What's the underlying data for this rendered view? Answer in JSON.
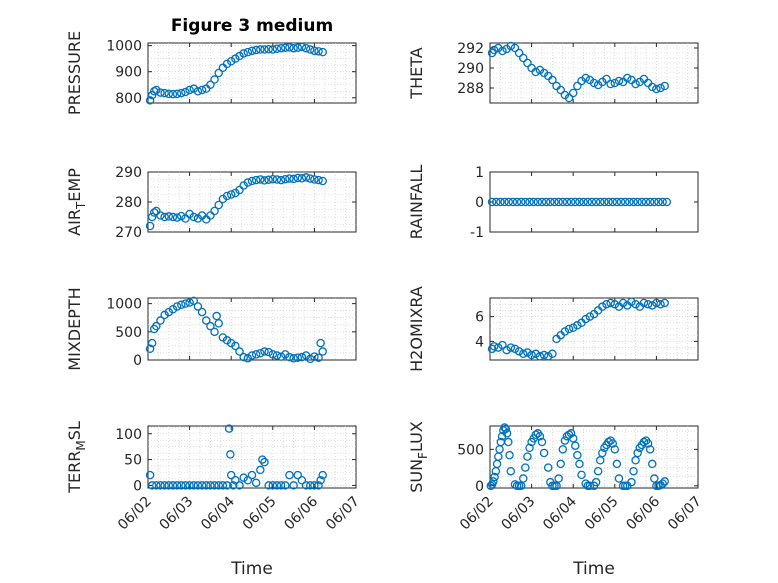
{
  "title": "Figure 3 medium",
  "marker_color": "#0072bd",
  "x_ticks": [
    "06/02",
    "06/03",
    "06/04",
    "06/05",
    "06/06",
    "06/07"
  ],
  "x_label": "Time",
  "chart_data": [
    {
      "type": "scatter",
      "panel": "left-1",
      "ylabel": "PRESSURE",
      "ylim": [
        780,
        1010
      ],
      "yticks": [
        "800",
        "900",
        "1000"
      ],
      "grid": true,
      "x_range_days": [
        0,
        5
      ],
      "x": [
        0.05,
        0.1,
        0.15,
        0.2,
        0.3,
        0.4,
        0.5,
        0.6,
        0.7,
        0.8,
        0.9,
        1.0,
        1.1,
        1.2,
        1.3,
        1.4,
        1.5,
        1.6,
        1.7,
        1.8,
        1.9,
        2.0,
        2.1,
        2.2,
        2.3,
        2.4,
        2.5,
        2.6,
        2.7,
        2.8,
        2.9,
        3.0,
        3.1,
        3.2,
        3.3,
        3.4,
        3.5,
        3.6,
        3.7,
        3.8,
        3.9,
        4.0,
        4.1,
        4.2
      ],
      "y": [
        790,
        810,
        825,
        830,
        820,
        818,
        815,
        814,
        815,
        818,
        822,
        830,
        835,
        825,
        830,
        835,
        850,
        870,
        895,
        915,
        930,
        940,
        950,
        960,
        970,
        975,
        980,
        983,
        985,
        985,
        986,
        985,
        988,
        990,
        992,
        993,
        990,
        992,
        995,
        990,
        985,
        980,
        978,
        975
      ]
    },
    {
      "type": "scatter",
      "panel": "right-1",
      "ylabel": "THETA",
      "ylim": [
        286.5,
        292.5
      ],
      "yticks": [
        "288",
        "290",
        "292"
      ],
      "grid": true,
      "x_range_days": [
        0,
        5
      ],
      "x": [
        0.05,
        0.1,
        0.2,
        0.3,
        0.4,
        0.5,
        0.6,
        0.7,
        0.8,
        0.9,
        1.0,
        1.1,
        1.2,
        1.3,
        1.4,
        1.5,
        1.6,
        1.7,
        1.8,
        1.9,
        2.0,
        2.1,
        2.2,
        2.3,
        2.4,
        2.5,
        2.6,
        2.7,
        2.8,
        2.9,
        3.0,
        3.1,
        3.2,
        3.3,
        3.4,
        3.5,
        3.6,
        3.7,
        3.8,
        3.9,
        4.0,
        4.1,
        4.2
      ],
      "y": [
        291.5,
        291.8,
        292.0,
        291.7,
        291.9,
        292.2,
        292.0,
        291.5,
        291.0,
        290.5,
        290.0,
        289.6,
        289.8,
        289.5,
        289.2,
        288.8,
        288.2,
        287.8,
        287.3,
        287.0,
        287.5,
        288.2,
        288.7,
        289.0,
        288.8,
        288.5,
        288.3,
        288.6,
        288.9,
        288.4,
        288.5,
        288.7,
        288.6,
        289.0,
        288.8,
        288.4,
        288.6,
        288.9,
        288.5,
        288.1,
        287.9,
        288.0,
        288.2
      ]
    },
    {
      "type": "scatter",
      "panel": "left-2",
      "ylabel": "AIR_TEMP",
      "ylim": [
        270,
        290
      ],
      "yticks": [
        "270",
        "280",
        "290"
      ],
      "grid": true,
      "x_range_days": [
        0,
        5
      ],
      "x": [
        0.05,
        0.1,
        0.15,
        0.2,
        0.3,
        0.4,
        0.5,
        0.6,
        0.7,
        0.8,
        0.9,
        1.0,
        1.1,
        1.2,
        1.3,
        1.4,
        1.5,
        1.6,
        1.7,
        1.8,
        1.9,
        2.0,
        2.1,
        2.2,
        2.3,
        2.4,
        2.5,
        2.6,
        2.7,
        2.8,
        2.9,
        3.0,
        3.1,
        3.2,
        3.3,
        3.4,
        3.5,
        3.6,
        3.7,
        3.8,
        3.9,
        4.0,
        4.1,
        4.2
      ],
      "y": [
        272,
        275,
        276.5,
        277,
        275.5,
        275,
        275.2,
        275,
        274.8,
        275.3,
        274.5,
        276,
        275,
        274.5,
        275.5,
        274.2,
        275.5,
        277,
        279,
        281,
        282,
        282.5,
        283,
        284,
        285.5,
        286.5,
        287,
        287.3,
        287.5,
        287.2,
        287.4,
        287.6,
        287.5,
        287.3,
        287.6,
        287.8,
        287.7,
        288,
        287.9,
        288.2,
        287.8,
        287.5,
        287.3,
        287
      ]
    },
    {
      "type": "scatter",
      "panel": "right-2",
      "ylabel": "RAINFALL",
      "ylim": [
        -1,
        1
      ],
      "yticks": [
        "-1",
        "0",
        "1"
      ],
      "grid": false,
      "x_range_days": [
        0,
        5
      ],
      "x": [
        0.05,
        0.15,
        0.25,
        0.35,
        0.45,
        0.55,
        0.65,
        0.75,
        0.85,
        0.95,
        1.05,
        1.15,
        1.25,
        1.35,
        1.45,
        1.55,
        1.65,
        1.75,
        1.85,
        1.95,
        2.05,
        2.15,
        2.25,
        2.35,
        2.45,
        2.55,
        2.65,
        2.75,
        2.85,
        2.95,
        3.05,
        3.15,
        3.25,
        3.35,
        3.45,
        3.55,
        3.65,
        3.75,
        3.85,
        3.95,
        4.05,
        4.15,
        4.25
      ],
      "y": [
        0,
        0,
        0,
        0,
        0,
        0,
        0,
        0,
        0,
        0,
        0,
        0,
        0,
        0,
        0,
        0,
        0,
        0,
        0,
        0,
        0,
        0,
        0,
        0,
        0,
        0,
        0,
        0,
        0,
        0,
        0,
        0,
        0,
        0,
        0,
        0,
        0,
        0,
        0,
        0,
        0,
        0,
        0
      ]
    },
    {
      "type": "scatter",
      "panel": "left-3",
      "ylabel": "MIXDEPTH",
      "ylim": [
        0,
        1100
      ],
      "yticks": [
        "0",
        "500",
        "1000"
      ],
      "grid": true,
      "x_range_days": [
        0,
        5
      ],
      "x": [
        0.05,
        0.1,
        0.15,
        0.2,
        0.3,
        0.4,
        0.5,
        0.6,
        0.7,
        0.8,
        0.9,
        1.0,
        1.1,
        1.2,
        1.3,
        1.4,
        1.5,
        1.6,
        1.65,
        1.7,
        1.8,
        1.9,
        2.0,
        2.1,
        2.2,
        2.3,
        2.4,
        2.5,
        2.6,
        2.7,
        2.8,
        2.9,
        3.0,
        3.1,
        3.2,
        3.3,
        3.4,
        3.5,
        3.6,
        3.7,
        3.8,
        3.9,
        4.0,
        4.1,
        4.2,
        4.15
      ],
      "y": [
        200,
        300,
        550,
        600,
        700,
        800,
        850,
        900,
        950,
        980,
        1000,
        1020,
        1050,
        950,
        850,
        700,
        600,
        500,
        780,
        650,
        400,
        350,
        300,
        250,
        150,
        50,
        30,
        80,
        100,
        120,
        150,
        140,
        100,
        80,
        60,
        100,
        50,
        30,
        40,
        50,
        80,
        20,
        60,
        40,
        150,
        300
      ]
    },
    {
      "type": "scatter",
      "panel": "right-3",
      "ylabel": "H2OMIXRA",
      "ylim": [
        2.5,
        7.5
      ],
      "yticks": [
        "4",
        "6"
      ],
      "grid": true,
      "x_range_days": [
        0,
        5
      ],
      "x": [
        0.05,
        0.1,
        0.2,
        0.3,
        0.4,
        0.5,
        0.6,
        0.7,
        0.8,
        0.9,
        1.0,
        1.1,
        1.2,
        1.3,
        1.4,
        1.5,
        1.6,
        1.7,
        1.8,
        1.9,
        2.0,
        2.1,
        2.2,
        2.3,
        2.4,
        2.5,
        2.6,
        2.7,
        2.8,
        2.9,
        3.0,
        3.1,
        3.2,
        3.3,
        3.4,
        3.5,
        3.6,
        3.7,
        3.8,
        3.9,
        4.0,
        4.1,
        4.2
      ],
      "y": [
        3.4,
        3.6,
        3.5,
        3.7,
        3.3,
        3.5,
        3.4,
        3.2,
        3.0,
        3.1,
        2.9,
        3.0,
        2.8,
        2.9,
        2.8,
        3.0,
        4.2,
        4.5,
        4.8,
        5.0,
        5.1,
        5.3,
        5.5,
        5.8,
        6.0,
        6.2,
        6.5,
        6.8,
        7.0,
        7.1,
        7.0,
        6.8,
        7.1,
        6.9,
        7.2,
        7.0,
        6.8,
        7.1,
        7.0,
        6.9,
        7.1,
        7.0,
        7.1
      ]
    },
    {
      "type": "scatter",
      "panel": "left-4",
      "ylabel": "TERR_MSL",
      "ylim": [
        -5,
        115
      ],
      "yticks": [
        "0",
        "50",
        "100"
      ],
      "grid": true,
      "x_range_days": [
        0,
        5
      ],
      "x": [
        0.05,
        0.1,
        0.2,
        0.3,
        0.4,
        0.5,
        0.6,
        0.7,
        0.8,
        0.9,
        1.0,
        1.1,
        1.2,
        1.3,
        1.4,
        1.5,
        1.6,
        1.7,
        1.8,
        1.9,
        1.95,
        1.98,
        2.0,
        2.05,
        2.1,
        2.2,
        2.3,
        2.4,
        2.5,
        2.6,
        2.7,
        2.75,
        2.8,
        2.9,
        3.0,
        3.1,
        3.2,
        3.3,
        3.4,
        3.5,
        3.6,
        3.7,
        3.8,
        3.9,
        4.0,
        4.1,
        4.15,
        4.2
      ],
      "y": [
        20,
        0,
        0,
        0,
        0,
        0,
        0,
        0,
        0,
        0,
        0,
        0,
        0,
        0,
        0,
        0,
        0,
        0,
        0,
        0,
        110,
        60,
        20,
        0,
        10,
        0,
        15,
        10,
        20,
        5,
        30,
        50,
        45,
        0,
        0,
        0,
        0,
        0,
        20,
        0,
        20,
        10,
        0,
        0,
        0,
        0,
        10,
        20
      ]
    },
    {
      "type": "scatter",
      "panel": "right-4",
      "ylabel": "SUN_FLUX",
      "ylim": [
        -30,
        820
      ],
      "yticks": [
        "0",
        "500"
      ],
      "grid": true,
      "x_range_days": [
        0,
        5
      ],
      "x": [
        0.02,
        0.05,
        0.08,
        0.11,
        0.14,
        0.17,
        0.2,
        0.23,
        0.26,
        0.29,
        0.32,
        0.35,
        0.38,
        0.41,
        0.44,
        0.47,
        0.5,
        0.6,
        0.65,
        0.7,
        0.75,
        0.8,
        0.85,
        0.9,
        0.95,
        1.0,
        1.05,
        1.1,
        1.15,
        1.2,
        1.25,
        1.3,
        1.4,
        1.45,
        1.5,
        1.55,
        1.6,
        1.65,
        1.7,
        1.75,
        1.8,
        1.85,
        1.9,
        1.95,
        2.0,
        2.05,
        2.1,
        2.15,
        2.2,
        2.3,
        2.35,
        2.4,
        2.5,
        2.55,
        2.6,
        2.65,
        2.7,
        2.75,
        2.8,
        2.85,
        2.9,
        2.95,
        3.0,
        3.05,
        3.1,
        3.2,
        3.25,
        3.3,
        3.4,
        3.45,
        3.5,
        3.55,
        3.6,
        3.65,
        3.7,
        3.75,
        3.8,
        3.85,
        3.9,
        3.95,
        4.0,
        4.05,
        4.1,
        4.15,
        4.2
      ],
      "y": [
        0,
        20,
        60,
        120,
        200,
        300,
        400,
        500,
        600,
        680,
        760,
        800,
        780,
        720,
        600,
        420,
        200,
        20,
        0,
        0,
        0,
        100,
        250,
        400,
        520,
        600,
        650,
        700,
        720,
        680,
        600,
        450,
        250,
        50,
        0,
        0,
        0,
        100,
        300,
        500,
        620,
        680,
        700,
        720,
        650,
        550,
        420,
        300,
        150,
        30,
        0,
        0,
        0,
        50,
        200,
        350,
        450,
        520,
        560,
        600,
        620,
        580,
        500,
        300,
        100,
        0,
        0,
        0,
        50,
        200,
        350,
        450,
        520,
        560,
        600,
        620,
        580,
        500,
        300,
        100,
        0,
        0,
        10,
        30,
        60
      ]
    }
  ]
}
